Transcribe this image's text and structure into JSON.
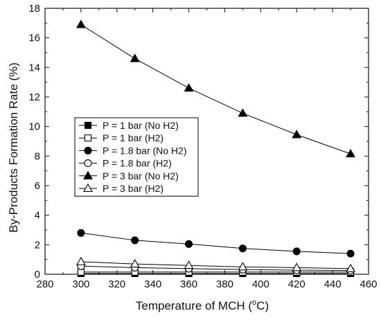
{
  "chart_data": {
    "type": "line",
    "title": "",
    "xlabel": "Temperature of MCH (",
    "xlabel_sup": "o",
    "xlabel_tail": "C)",
    "ylabel": "By-Products Formation Rate (%)",
    "xlim": [
      280,
      460
    ],
    "ylim": [
      0,
      18
    ],
    "xticks": [
      280,
      300,
      320,
      340,
      360,
      380,
      400,
      420,
      440,
      460
    ],
    "yticks": [
      0,
      2,
      4,
      6,
      8,
      10,
      12,
      14,
      16,
      18
    ],
    "x": [
      300,
      330,
      360,
      390,
      420,
      450
    ],
    "legend_position": "left-middle",
    "series": [
      {
        "name": "P = 1 bar (No H2)",
        "marker": "square",
        "fill": "filled",
        "values": [
          0.05,
          0.05,
          0.05,
          0.05,
          0.05,
          0.05
        ]
      },
      {
        "name": "P = 1 bar (H2)",
        "marker": "square",
        "fill": "open",
        "values": [
          0.15,
          0.15,
          0.15,
          0.15,
          0.15,
          0.15
        ]
      },
      {
        "name": "P = 1.8 bar (No H2)",
        "marker": "circle",
        "fill": "filled",
        "values": [
          2.8,
          2.3,
          2.05,
          1.75,
          1.55,
          1.4
        ]
      },
      {
        "name": "P = 1.8 bar (H2)",
        "marker": "circle",
        "fill": "open",
        "values": [
          0.55,
          0.45,
          0.38,
          0.32,
          0.28,
          0.25
        ]
      },
      {
        "name": "P = 3 bar (No H2)",
        "marker": "triangle",
        "fill": "filled",
        "values": [
          16.9,
          14.6,
          12.6,
          10.9,
          9.45,
          8.15
        ]
      },
      {
        "name": "P = 3 bar (H2)",
        "marker": "triangle",
        "fill": "open",
        "values": [
          0.85,
          0.7,
          0.6,
          0.5,
          0.45,
          0.38
        ]
      }
    ]
  }
}
